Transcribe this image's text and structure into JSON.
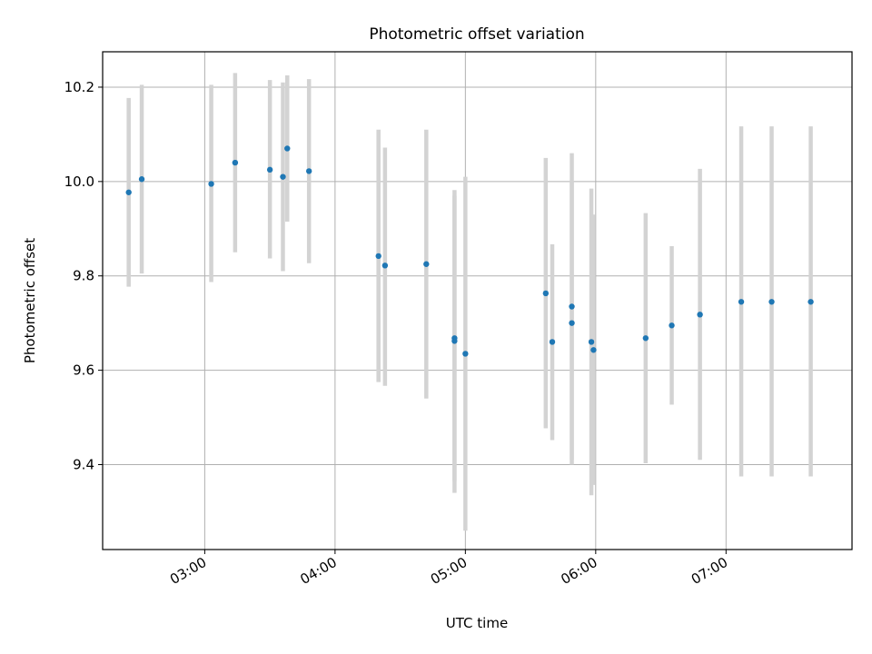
{
  "chart_data": {
    "type": "scatter",
    "title": "Photometric offset variation",
    "xlabel": "UTC time",
    "ylabel": "Photometric offset",
    "x_tick_labels": [
      "03:00",
      "04:00",
      "05:00",
      "06:00",
      "07:00"
    ],
    "x_ticks": [
      "03:00",
      "04:00",
      "05:00",
      "06:00",
      "07:00"
    ],
    "y_tick_labels": [
      "9.4",
      "9.6",
      "9.8",
      "10.0",
      "10.2"
    ],
    "y_ticks": [
      9.4,
      9.6,
      9.8,
      10.0,
      10.2
    ],
    "xlim": [
      "02:13",
      "07:58"
    ],
    "ylim": [
      9.22,
      10.275
    ],
    "grid": true,
    "colors": {
      "point": "#1f77b4",
      "errorbar": "#d3d3d3",
      "grid": "#b0b0b0"
    },
    "points": [
      {
        "x": "02:25",
        "y": 9.977,
        "ylow": 9.777,
        "yhigh": 10.177
      },
      {
        "x": "02:31",
        "y": 10.005,
        "ylow": 9.805,
        "yhigh": 10.205
      },
      {
        "x": "03:03",
        "y": 9.995,
        "ylow": 9.787,
        "yhigh": 10.205
      },
      {
        "x": "03:14",
        "y": 10.04,
        "ylow": 9.85,
        "yhigh": 10.23
      },
      {
        "x": "03:30",
        "y": 10.025,
        "ylow": 9.837,
        "yhigh": 10.215
      },
      {
        "x": "03:36",
        "y": 10.01,
        "ylow": 9.81,
        "yhigh": 10.21
      },
      {
        "x": "03:38",
        "y": 10.07,
        "ylow": 9.915,
        "yhigh": 10.225
      },
      {
        "x": "03:48",
        "y": 10.022,
        "ylow": 9.827,
        "yhigh": 10.217
      },
      {
        "x": "04:20",
        "y": 9.842,
        "ylow": 9.575,
        "yhigh": 10.11
      },
      {
        "x": "04:23",
        "y": 9.822,
        "ylow": 9.567,
        "yhigh": 10.072
      },
      {
        "x": "04:42",
        "y": 9.825,
        "ylow": 9.54,
        "yhigh": 10.11
      },
      {
        "x": "04:55",
        "y": 9.662,
        "ylow": 9.34,
        "yhigh": 9.982
      },
      {
        "x": "04:55",
        "y": 9.668,
        "ylow": 9.365,
        "yhigh": 9.97
      },
      {
        "x": "05:00",
        "y": 9.635,
        "ylow": 9.26,
        "yhigh": 10.01
      },
      {
        "x": "05:37",
        "y": 9.763,
        "ylow": 9.477,
        "yhigh": 10.05
      },
      {
        "x": "05:40",
        "y": 9.66,
        "ylow": 9.452,
        "yhigh": 9.867
      },
      {
        "x": "05:49",
        "y": 9.735,
        "ylow": 9.41,
        "yhigh": 10.06
      },
      {
        "x": "05:49",
        "y": 9.7,
        "ylow": 9.4,
        "yhigh": 10.0
      },
      {
        "x": "05:58",
        "y": 9.66,
        "ylow": 9.335,
        "yhigh": 9.985
      },
      {
        "x": "05:59",
        "y": 9.643,
        "ylow": 9.357,
        "yhigh": 9.93
      },
      {
        "x": "06:23",
        "y": 9.668,
        "ylow": 9.403,
        "yhigh": 9.933
      },
      {
        "x": "06:35",
        "y": 9.695,
        "ylow": 9.527,
        "yhigh": 9.863
      },
      {
        "x": "06:48",
        "y": 9.718,
        "ylow": 9.41,
        "yhigh": 10.027
      },
      {
        "x": "07:07",
        "y": 9.745,
        "ylow": 9.375,
        "yhigh": 10.117
      },
      {
        "x": "07:21",
        "y": 9.745,
        "ylow": 9.375,
        "yhigh": 10.117
      },
      {
        "x": "07:39",
        "y": 9.745,
        "ylow": 9.375,
        "yhigh": 10.117
      }
    ]
  }
}
